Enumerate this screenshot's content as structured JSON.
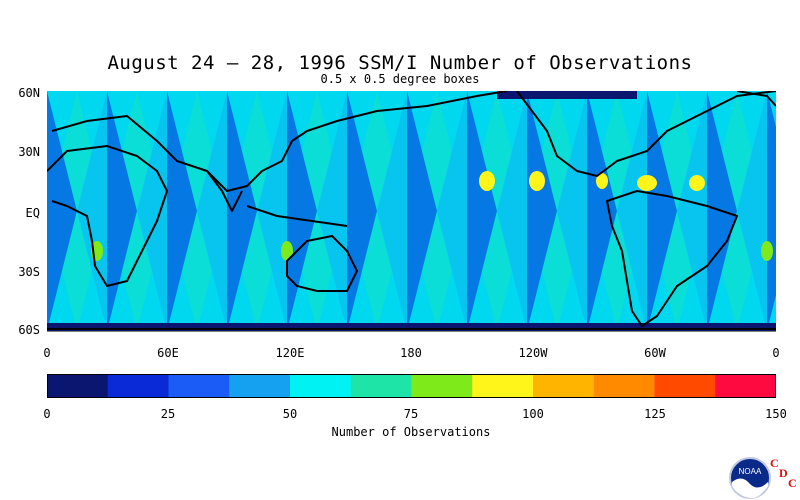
{
  "title": "August 24 – 28, 1996 SSM/I Number of Observations",
  "subtitle": "0.5 x 0.5 degree boxes",
  "lat_labels": [
    "60N",
    "30N",
    "EQ",
    "30S",
    "60S"
  ],
  "lon_labels": [
    "0",
    "60E",
    "120E",
    "180",
    "120W",
    "60W",
    "0"
  ],
  "colorbar": {
    "label": "Number of Observations",
    "ticks": [
      "0",
      "25",
      "50",
      "75",
      "100",
      "125",
      "150"
    ],
    "colors": [
      "#0a1670",
      "#0a2ad8",
      "#1a5cf5",
      "#16a0f0",
      "#00f2f2",
      "#1ee4a8",
      "#7fea1a",
      "#fff51a",
      "#ffb500",
      "#ff8a00",
      "#ff4a00",
      "#ff0a40"
    ]
  },
  "logos": {
    "noaa": "NOAA",
    "cdc": [
      "C",
      "D",
      "C"
    ]
  },
  "chart_data": {
    "type": "heatmap",
    "title": "August 24 – 28, 1996 SSM/I Number of Observations",
    "subtitle": "0.5 x 0.5 degree boxes",
    "x_ticks": [
      "0",
      "60E",
      "120E",
      "180",
      "120W",
      "60W",
      "0"
    ],
    "y_ticks": [
      "60N",
      "30N",
      "EQ",
      "30S",
      "60S"
    ],
    "value_range": [
      0,
      150
    ],
    "colorbar_label": "Number of Observations"
  }
}
